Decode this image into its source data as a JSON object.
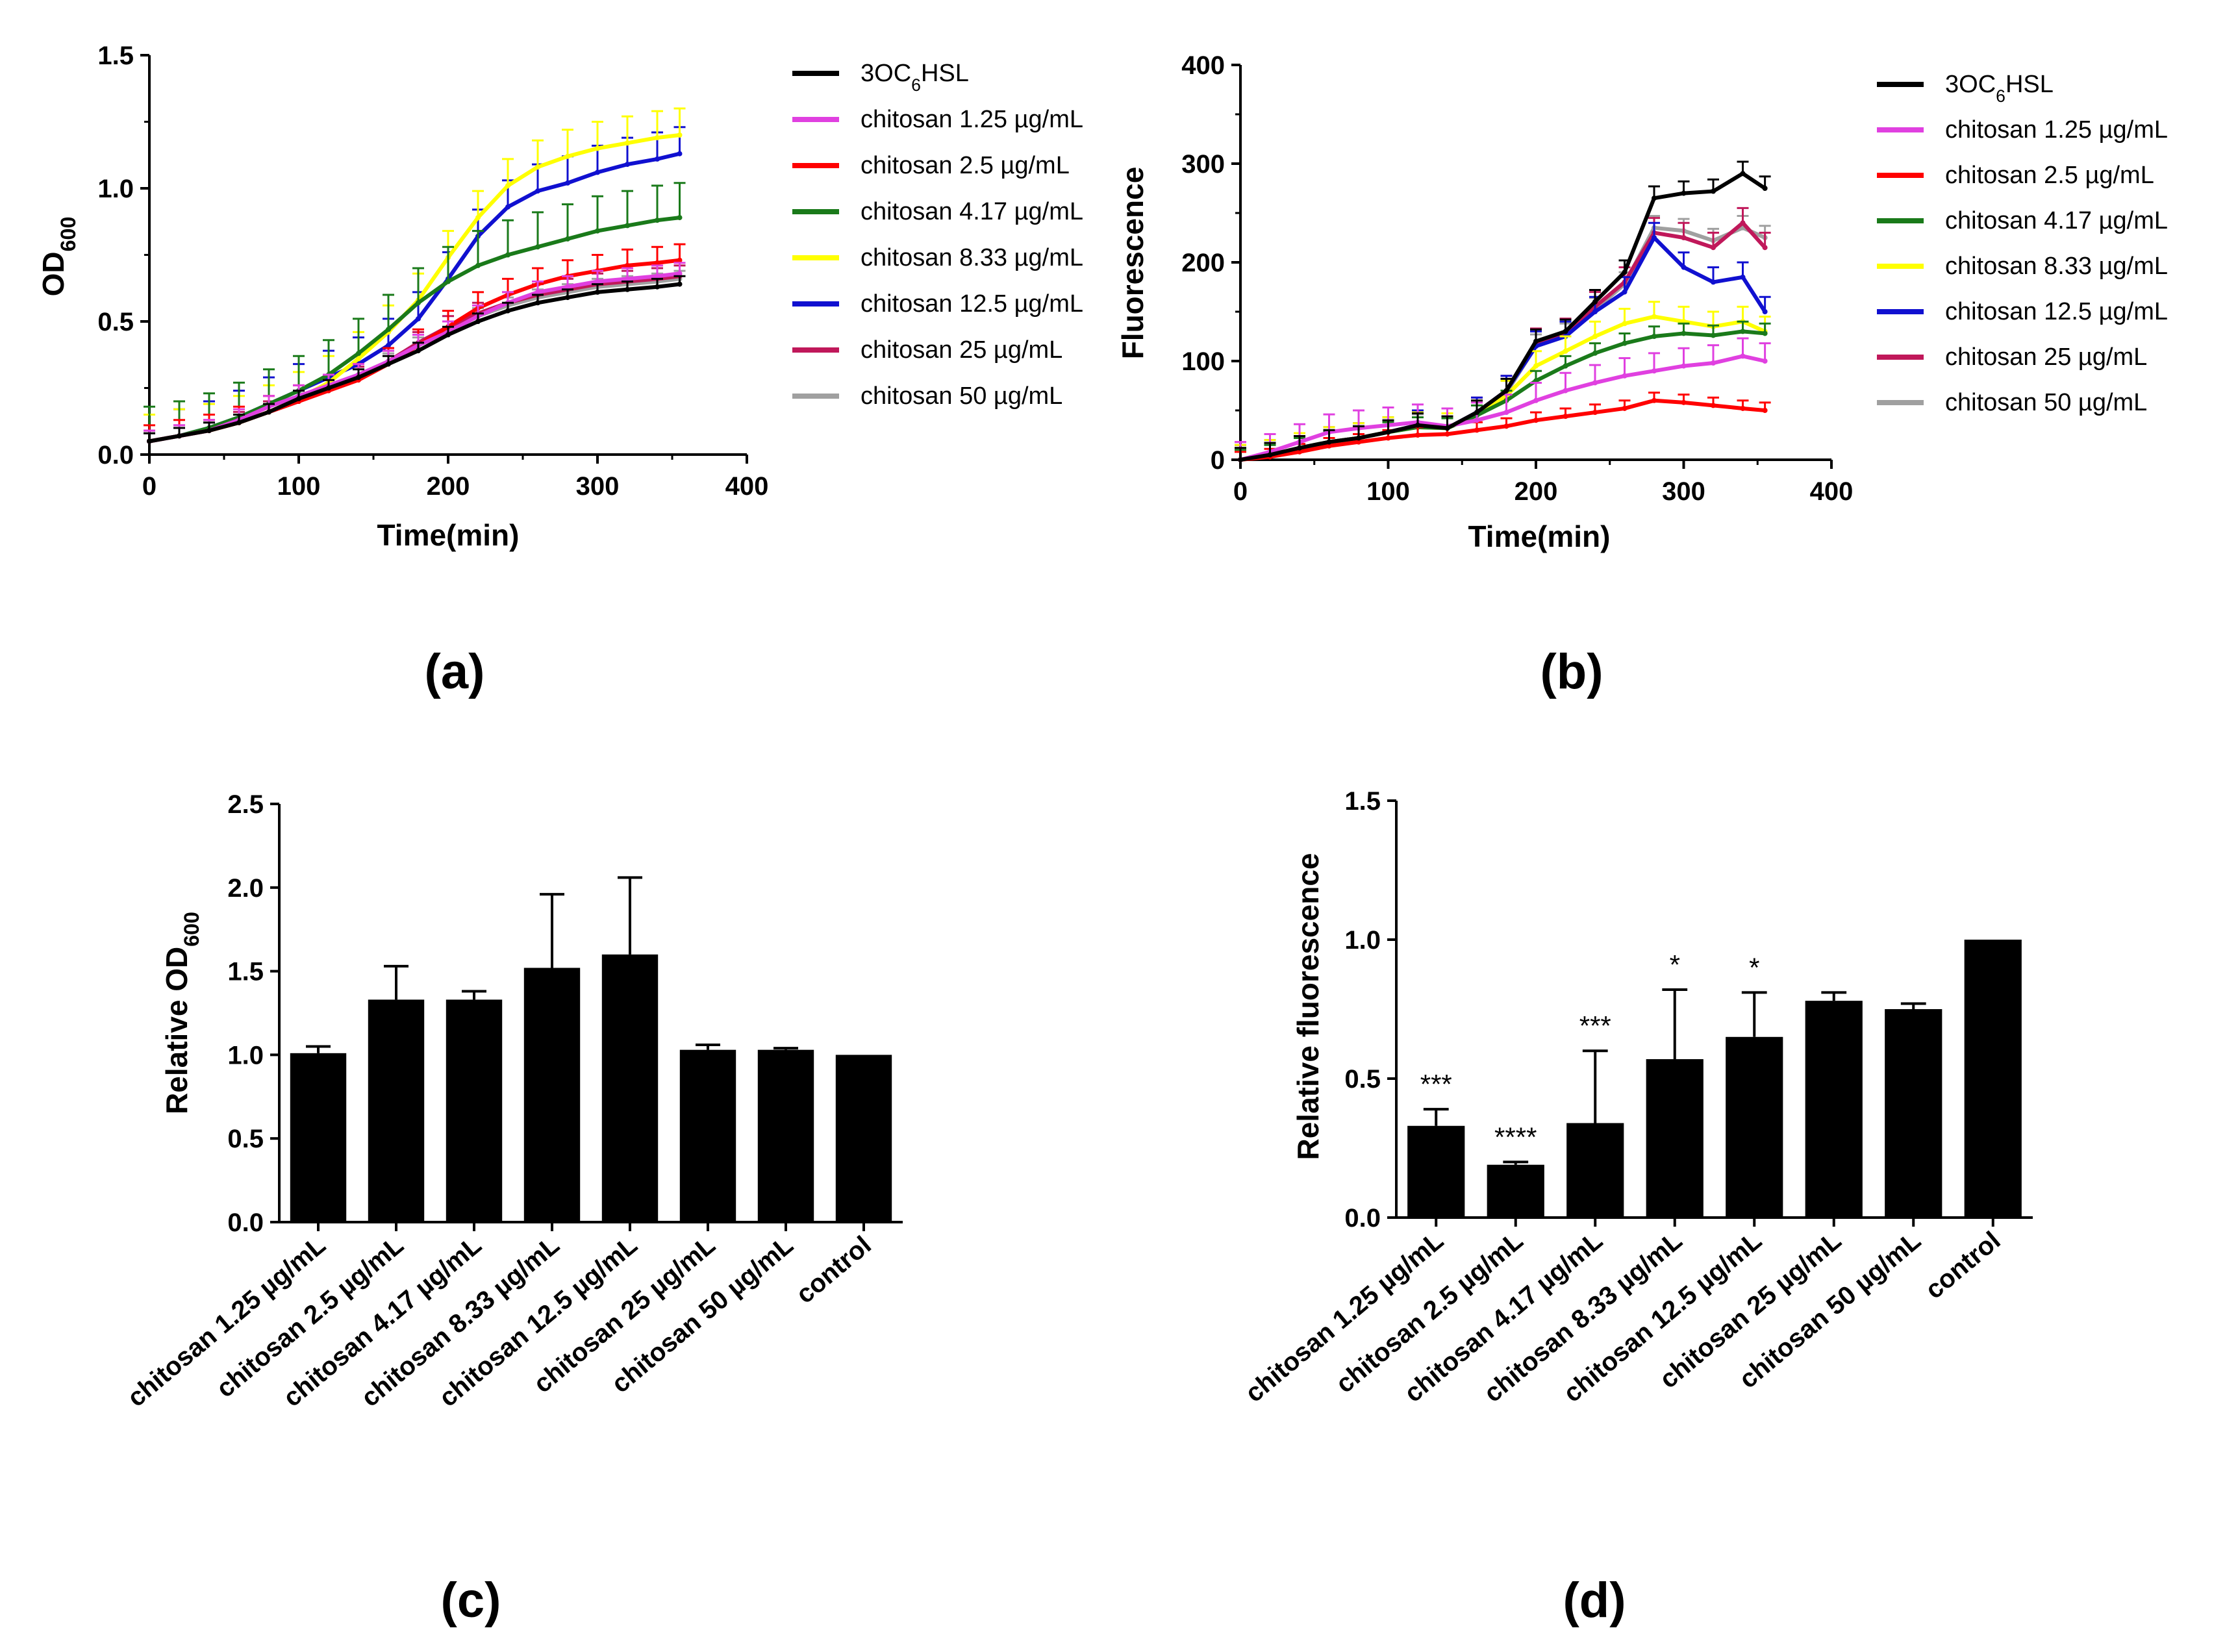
{
  "chart_data": [
    {
      "id": "a",
      "panel_label": "(a)",
      "type": "line",
      "xlabel": "Time(min)",
      "ylabel": {
        "base": "OD",
        "sub": "600"
      },
      "xlim": [
        0,
        400
      ],
      "ylim": [
        0,
        1.5
      ],
      "xticks": [
        "0",
        "100",
        "200",
        "300",
        "400"
      ],
      "yticks": [
        "0.0",
        "0.5",
        "1.0",
        "1.5"
      ],
      "x": [
        0,
        20,
        40,
        60,
        80,
        100,
        120,
        140,
        160,
        180,
        200,
        220,
        240,
        260,
        280,
        300,
        320,
        340,
        355
      ],
      "series": [
        {
          "name": "3OC6HSL",
          "name_base": "3OC",
          "name_sub": "6",
          "name_rest": "HSL",
          "color": "#000000",
          "values": [
            0.05,
            0.07,
            0.09,
            0.12,
            0.16,
            0.21,
            0.25,
            0.29,
            0.34,
            0.39,
            0.45,
            0.5,
            0.54,
            0.57,
            0.59,
            0.61,
            0.62,
            0.63,
            0.64
          ],
          "err": 0.03
        },
        {
          "name": "chitosan 1.25 µg/mL",
          "color": "#e040e0",
          "values": [
            0.05,
            0.07,
            0.09,
            0.13,
            0.18,
            0.22,
            0.26,
            0.3,
            0.35,
            0.41,
            0.46,
            0.52,
            0.57,
            0.61,
            0.63,
            0.65,
            0.66,
            0.67,
            0.68
          ],
          "err": 0.04
        },
        {
          "name": "chitosan 2.5 µg/mL",
          "color": "#ff0000",
          "values": [
            0.05,
            0.07,
            0.09,
            0.12,
            0.16,
            0.2,
            0.24,
            0.28,
            0.34,
            0.41,
            0.48,
            0.55,
            0.6,
            0.64,
            0.67,
            0.69,
            0.71,
            0.72,
            0.73
          ],
          "err": 0.06
        },
        {
          "name": "chitosan 4.17 µg/mL",
          "color": "#1a7a1a",
          "values": [
            0.05,
            0.07,
            0.1,
            0.14,
            0.19,
            0.24,
            0.3,
            0.38,
            0.47,
            0.57,
            0.65,
            0.71,
            0.75,
            0.78,
            0.81,
            0.84,
            0.86,
            0.88,
            0.89
          ],
          "err": 0.13
        },
        {
          "name": "chitosan 8.33 µg/mL",
          "color": "#ffff00",
          "values": [
            0.05,
            0.07,
            0.09,
            0.12,
            0.16,
            0.21,
            0.27,
            0.36,
            0.46,
            0.58,
            0.74,
            0.89,
            1.01,
            1.08,
            1.12,
            1.15,
            1.17,
            1.19,
            1.2
          ],
          "err": 0.1
        },
        {
          "name": "chitosan 12.5 µg/mL",
          "color": "#1010d0",
          "values": [
            0.05,
            0.07,
            0.1,
            0.14,
            0.19,
            0.24,
            0.29,
            0.34,
            0.41,
            0.51,
            0.66,
            0.82,
            0.93,
            0.99,
            1.02,
            1.06,
            1.09,
            1.11,
            1.13
          ],
          "err": 0.1
        },
        {
          "name": "chitosan 25 µg/mL",
          "color": "#c0185a",
          "values": [
            0.05,
            0.07,
            0.09,
            0.12,
            0.16,
            0.2,
            0.24,
            0.29,
            0.35,
            0.42,
            0.48,
            0.53,
            0.57,
            0.6,
            0.62,
            0.64,
            0.65,
            0.66,
            0.67
          ],
          "err": 0.04
        },
        {
          "name": "chitosan 50 µg/mL",
          "color": "#a0a0a0",
          "values": [
            0.05,
            0.07,
            0.09,
            0.12,
            0.16,
            0.2,
            0.25,
            0.3,
            0.35,
            0.41,
            0.47,
            0.52,
            0.56,
            0.59,
            0.61,
            0.63,
            0.64,
            0.65,
            0.66
          ],
          "err": 0.03
        }
      ],
      "legend_position": "right"
    },
    {
      "id": "b",
      "panel_label": "(b)",
      "type": "line",
      "xlabel": "Time(min)",
      "ylabel": {
        "base": "Fluorescence",
        "sub": ""
      },
      "xlim": [
        0,
        400
      ],
      "ylim": [
        0,
        400
      ],
      "xticks": [
        "0",
        "100",
        "200",
        "300",
        "400"
      ],
      "yticks": [
        "0",
        "100",
        "200",
        "300",
        "400"
      ],
      "x": [
        0,
        20,
        40,
        60,
        80,
        100,
        120,
        140,
        160,
        180,
        200,
        220,
        240,
        260,
        280,
        300,
        320,
        340,
        355
      ],
      "series": [
        {
          "name": "3OC6HSL",
          "name_base": "3OC",
          "name_sub": "6",
          "name_rest": "HSL",
          "color": "#000000",
          "values": [
            0,
            5,
            12,
            18,
            22,
            28,
            35,
            32,
            48,
            70,
            120,
            130,
            160,
            190,
            265,
            270,
            272,
            290,
            275
          ],
          "err": 12
        },
        {
          "name": "chitosan 1.25 µg/mL",
          "color": "#e040e0",
          "values": [
            0,
            8,
            18,
            28,
            32,
            35,
            38,
            34,
            40,
            48,
            60,
            70,
            78,
            85,
            90,
            95,
            98,
            105,
            100
          ],
          "err": 18
        },
        {
          "name": "chitosan 2.5 µg/mL",
          "color": "#ff0000",
          "values": [
            0,
            3,
            8,
            14,
            18,
            22,
            25,
            26,
            30,
            34,
            40,
            44,
            48,
            52,
            60,
            58,
            55,
            52,
            50
          ],
          "err": 8
        },
        {
          "name": "chitosan 4.17 µg/mL",
          "color": "#1a7a1a",
          "values": [
            0,
            5,
            12,
            18,
            22,
            28,
            33,
            32,
            45,
            60,
            80,
            95,
            108,
            118,
            125,
            128,
            126,
            130,
            128
          ],
          "err": 10
        },
        {
          "name": "chitosan 8.33 µg/mL",
          "color": "#ffff00",
          "values": [
            0,
            5,
            12,
            18,
            22,
            28,
            33,
            32,
            45,
            65,
            95,
            110,
            125,
            138,
            145,
            140,
            135,
            140,
            130
          ],
          "err": 15
        },
        {
          "name": "chitosan 12.5 µg/mL",
          "color": "#1010d0",
          "values": [
            0,
            5,
            12,
            18,
            22,
            28,
            35,
            32,
            48,
            70,
            115,
            125,
            150,
            170,
            225,
            195,
            180,
            185,
            150
          ],
          "err": 15
        },
        {
          "name": "chitosan 25 µg/mL",
          "color": "#c0185a",
          "values": [
            0,
            5,
            12,
            18,
            22,
            28,
            35,
            32,
            48,
            70,
            118,
            128,
            155,
            180,
            230,
            225,
            215,
            240,
            215
          ],
          "err": 15
        },
        {
          "name": "chitosan 50 µg/mL",
          "color": "#a0a0a0",
          "values": [
            0,
            5,
            12,
            18,
            22,
            28,
            34,
            32,
            47,
            68,
            115,
            126,
            152,
            178,
            235,
            232,
            222,
            235,
            225
          ],
          "err": 12
        }
      ],
      "legend_position": "right"
    },
    {
      "id": "c",
      "panel_label": "(c)",
      "type": "bar",
      "ylabel": {
        "base": "Relative OD",
        "sub": "600"
      },
      "ylim": [
        0,
        2.5
      ],
      "yticks": [
        "0.0",
        "0.5",
        "1.0",
        "1.5",
        "2.0",
        "2.5"
      ],
      "categories": [
        "chitosan 1.25 µg/mL",
        "chitosan 2.5 µg/mL",
        "chitosan 4.17 µg/mL",
        "chitosan 8.33 µg/mL",
        "chitosan 12.5 µg/mL",
        "chitosan 25 µg/mL",
        "chitosan 50 µg/mL",
        "control"
      ],
      "values": [
        1.01,
        1.33,
        1.33,
        1.52,
        1.6,
        1.03,
        1.03,
        1.0
      ],
      "errors": [
        0.04,
        0.2,
        0.05,
        0.44,
        0.46,
        0.03,
        0.01,
        0.0
      ],
      "bar_color": "#000000"
    },
    {
      "id": "d",
      "panel_label": "(d)",
      "type": "bar",
      "ylabel": {
        "base": "Relative fluorescence",
        "sub": ""
      },
      "ylim": [
        0,
        1.5
      ],
      "yticks": [
        "0.0",
        "0.5",
        "1.0",
        "1.5"
      ],
      "categories": [
        "chitosan 1.25 µg/mL",
        "chitosan 2.5 µg/mL",
        "chitosan 4.17 µg/mL",
        "chitosan 8.33 µg/mL",
        "chitosan 12.5 µg/mL",
        "chitosan 25 µg/mL",
        "chitosan 50 µg/mL",
        "control"
      ],
      "values": [
        0.33,
        0.19,
        0.34,
        0.57,
        0.65,
        0.78,
        0.75,
        1.0
      ],
      "errors": [
        0.06,
        0.01,
        0.26,
        0.25,
        0.16,
        0.03,
        0.02,
        0.0
      ],
      "significance": [
        "***",
        "****",
        "***",
        "*",
        "*",
        "",
        "",
        ""
      ],
      "bar_color": "#000000"
    }
  ]
}
